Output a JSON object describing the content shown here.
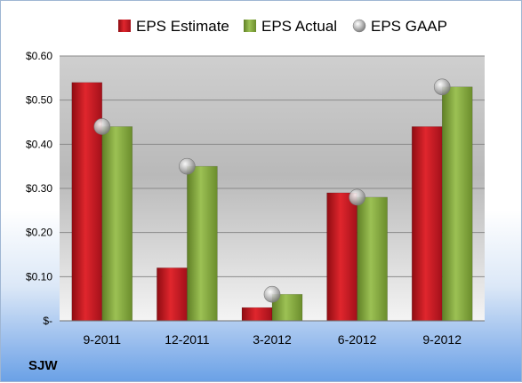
{
  "chart_data": {
    "type": "bar",
    "categories": [
      "9-2011",
      "12-2011",
      "3-2012",
      "6-2012",
      "9-2012"
    ],
    "series": [
      {
        "name": "EPS Estimate",
        "values": [
          0.54,
          0.12,
          0.03,
          0.29,
          0.44
        ],
        "color": "#c0141c",
        "kind": "bar"
      },
      {
        "name": "EPS Actual",
        "values": [
          0.44,
          0.35,
          0.06,
          0.28,
          0.53
        ],
        "color": "#7fa23c",
        "kind": "bar"
      },
      {
        "name": "EPS GAAP",
        "values": [
          0.44,
          0.35,
          0.06,
          0.28,
          0.53
        ],
        "color": "#a8a8a8",
        "kind": "marker"
      }
    ],
    "ylim": [
      0,
      0.6
    ],
    "yticks": [
      0,
      0.1,
      0.2,
      0.3,
      0.4,
      0.5,
      0.6
    ],
    "ytick_labels": [
      "$-",
      "$0.10",
      "$0.20",
      "$0.30",
      "$0.40",
      "$0.50",
      "$0.60"
    ],
    "grid": true,
    "legend_position": "top",
    "corner_label": "SJW"
  }
}
